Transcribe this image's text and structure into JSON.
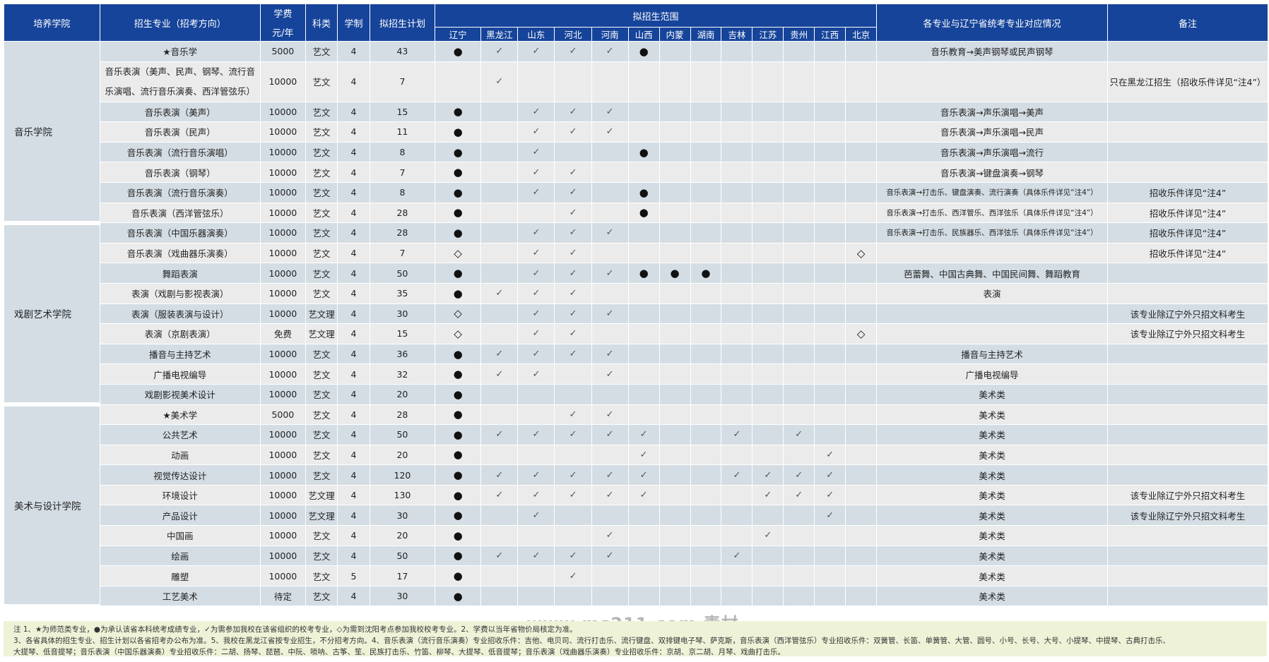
{
  "header": {
    "college": "培养学院",
    "major": "招生专业（招考方向）",
    "fee_line1": "学费",
    "fee_line2": "元/年",
    "category": "科类",
    "duration": "学制",
    "plan": "拟招生计划",
    "range": "拟招生范围",
    "provinces": [
      "辽宁",
      "黑龙江",
      "山东",
      "河北",
      "河南",
      "山西",
      "内蒙",
      "湖南",
      "吉林",
      "江苏",
      "贵州",
      "江西",
      "北京"
    ],
    "mapping": "各专业与辽宁省统考专业对应情况",
    "remark": "备注"
  },
  "rows": [
    {
      "college": "音乐学院",
      "college_span": 8,
      "major": "★音乐学",
      "fee": "5000",
      "category": "艺文",
      "duration": "4",
      "plan": "43",
      "marks": [
        "●",
        "✓",
        "✓",
        "✓",
        "✓",
        "●",
        "",
        "",
        "",
        "",
        "",
        "",
        ""
      ],
      "mapping": "音乐教育→美声钢琴或民声钢琴",
      "remark": ""
    },
    {
      "major": "音乐表演（美声、民声、钢琴、流行音乐演唱、流行音乐演奏、西洋管弦乐）",
      "tall": true,
      "fee": "10000",
      "category": "艺文",
      "duration": "4",
      "plan": "7",
      "marks": [
        "",
        "✓",
        "",
        "",
        "",
        "",
        "",
        "",
        "",
        "",
        "",
        "",
        ""
      ],
      "mapping": "",
      "remark": "只在黑龙江招生（招收乐件详见“注4”）"
    },
    {
      "major": "音乐表演（美声）",
      "fee": "10000",
      "category": "艺文",
      "duration": "4",
      "plan": "15",
      "marks": [
        "●",
        "",
        "✓",
        "✓",
        "✓",
        "",
        "",
        "",
        "",
        "",
        "",
        "",
        ""
      ],
      "mapping": "音乐表演→声乐演唱→美声",
      "remark": ""
    },
    {
      "major": "音乐表演（民声）",
      "fee": "10000",
      "category": "艺文",
      "duration": "4",
      "plan": "11",
      "marks": [
        "●",
        "",
        "✓",
        "✓",
        "✓",
        "",
        "",
        "",
        "",
        "",
        "",
        "",
        ""
      ],
      "mapping": "音乐表演→声乐演唱→民声",
      "remark": ""
    },
    {
      "major": "音乐表演（流行音乐演唱）",
      "fee": "10000",
      "category": "艺文",
      "duration": "4",
      "plan": "8",
      "marks": [
        "●",
        "",
        "✓",
        "",
        "",
        "●",
        "",
        "",
        "",
        "",
        "",
        "",
        ""
      ],
      "mapping": "音乐表演→声乐演唱→流行",
      "remark": ""
    },
    {
      "major": "音乐表演（钢琴）",
      "fee": "10000",
      "category": "艺文",
      "duration": "4",
      "plan": "7",
      "marks": [
        "●",
        "",
        "✓",
        "✓",
        "",
        "",
        "",
        "",
        "",
        "",
        "",
        "",
        ""
      ],
      "mapping": "音乐表演→键盘演奏→钢琴",
      "remark": ""
    },
    {
      "major": "音乐表演（流行音乐演奏）",
      "fee": "10000",
      "category": "艺文",
      "duration": "4",
      "plan": "8",
      "marks": [
        "●",
        "",
        "✓",
        "✓",
        "",
        "●",
        "",
        "",
        "",
        "",
        "",
        "",
        ""
      ],
      "mapping": "音乐表演→打击乐、键盘演奏、流行演奏（具体乐件详见“注4”）",
      "mapping_small": true,
      "remark": "招收乐件详见“注4”"
    },
    {
      "major": "音乐表演（西洋管弦乐）",
      "fee": "10000",
      "category": "艺文",
      "duration": "4",
      "plan": "28",
      "marks": [
        "●",
        "",
        "",
        "✓",
        "",
        "●",
        "",
        "",
        "",
        "",
        "",
        "",
        ""
      ],
      "mapping": "音乐表演→打击乐、西洋管乐、西洋弦乐（具体乐件详见“注4”）",
      "mapping_small": true,
      "remark": "招收乐件详见“注4”"
    },
    {
      "college": "戏剧艺术学院",
      "college_span": 9,
      "major": "音乐表演（中国乐器演奏）",
      "fee": "10000",
      "category": "艺文",
      "duration": "4",
      "plan": "28",
      "marks": [
        "●",
        "",
        "✓",
        "✓",
        "✓",
        "",
        "",
        "",
        "",
        "",
        "",
        "",
        ""
      ],
      "mapping": "音乐表演→打击乐、民族器乐、西洋弦乐（具体乐件详见“注4”）",
      "mapping_small": true,
      "remark": "招收乐件详见“注4”"
    },
    {
      "major": "音乐表演（戏曲器乐演奏）",
      "fee": "10000",
      "category": "艺文",
      "duration": "4",
      "plan": "7",
      "marks": [
        "◇",
        "",
        "✓",
        "✓",
        "",
        "",
        "",
        "",
        "",
        "",
        "",
        "",
        "◇"
      ],
      "mapping": "",
      "remark": "招收乐件详见“注4”"
    },
    {
      "major": "舞蹈表演",
      "fee": "10000",
      "category": "艺文",
      "duration": "4",
      "plan": "50",
      "marks": [
        "●",
        "",
        "✓",
        "✓",
        "✓",
        "●",
        "●",
        "●",
        "",
        "",
        "",
        "",
        ""
      ],
      "mapping": "芭蕾舞、中国古典舞、中国民间舞、舞蹈教育",
      "remark": ""
    },
    {
      "major": "表演（戏剧与影视表演）",
      "fee": "10000",
      "category": "艺文",
      "duration": "4",
      "plan": "35",
      "marks": [
        "●",
        "✓",
        "✓",
        "✓",
        "",
        "",
        "",
        "",
        "",
        "",
        "",
        "",
        ""
      ],
      "mapping": "表演",
      "remark": ""
    },
    {
      "major": "表演（服装表演与设计）",
      "fee": "10000",
      "category": "艺文理",
      "duration": "4",
      "plan": "30",
      "marks": [
        "◇",
        "",
        "✓",
        "✓",
        "✓",
        "",
        "",
        "",
        "",
        "",
        "",
        "",
        ""
      ],
      "mapping": "",
      "remark": "该专业除辽宁外只招文科考生"
    },
    {
      "major": "表演（京剧表演）",
      "fee": "免费",
      "category": "艺文理",
      "duration": "4",
      "plan": "15",
      "marks": [
        "◇",
        "",
        "✓",
        "✓",
        "",
        "",
        "",
        "",
        "",
        "",
        "",
        "",
        "◇"
      ],
      "mapping": "",
      "remark": "该专业除辽宁外只招文科考生"
    },
    {
      "major": "播音与主持艺术",
      "fee": "10000",
      "category": "艺文",
      "duration": "4",
      "plan": "36",
      "marks": [
        "●",
        "✓",
        "✓",
        "✓",
        "✓",
        "",
        "",
        "",
        "",
        "",
        "",
        "",
        ""
      ],
      "mapping": "播音与主持艺术",
      "remark": ""
    },
    {
      "major": "广播电视编导",
      "fee": "10000",
      "category": "艺文",
      "duration": "4",
      "plan": "32",
      "marks": [
        "●",
        "✓",
        "✓",
        "",
        "✓",
        "",
        "",
        "",
        "",
        "",
        "",
        "",
        ""
      ],
      "mapping": "广播电视编导",
      "remark": ""
    },
    {
      "major": "戏剧影视美术设计",
      "fee": "10000",
      "category": "艺文",
      "duration": "4",
      "plan": "20",
      "marks": [
        "●",
        "",
        "",
        "",
        "",
        "",
        "",
        "",
        "",
        "",
        "",
        "",
        ""
      ],
      "mapping": "美术类",
      "remark": ""
    },
    {
      "college": "美术与设计学院",
      "college_span": 10,
      "major": "★美术学",
      "fee": "5000",
      "category": "艺文",
      "duration": "4",
      "plan": "28",
      "marks": [
        "●",
        "",
        "",
        "✓",
        "✓",
        "",
        "",
        "",
        "",
        "",
        "",
        "",
        ""
      ],
      "mapping": "美术类",
      "remark": ""
    },
    {
      "major": "公共艺术",
      "fee": "10000",
      "category": "艺文",
      "duration": "4",
      "plan": "50",
      "marks": [
        "●",
        "✓",
        "✓",
        "✓",
        "✓",
        "✓",
        "",
        "",
        "✓",
        "",
        "✓",
        "",
        ""
      ],
      "mapping": "美术类",
      "remark": ""
    },
    {
      "major": "动画",
      "fee": "10000",
      "category": "艺文",
      "duration": "4",
      "plan": "20",
      "marks": [
        "●",
        "",
        "",
        "",
        "",
        "✓",
        "",
        "",
        "",
        "",
        "",
        "✓",
        ""
      ],
      "mapping": "美术类",
      "remark": ""
    },
    {
      "major": "视觉传达设计",
      "fee": "10000",
      "category": "艺文",
      "duration": "4",
      "plan": "120",
      "marks": [
        "●",
        "✓",
        "✓",
        "✓",
        "✓",
        "✓",
        "",
        "",
        "✓",
        "✓",
        "✓",
        "✓",
        ""
      ],
      "mapping": "美术类",
      "remark": ""
    },
    {
      "major": "环境设计",
      "fee": "10000",
      "category": "艺文理",
      "duration": "4",
      "plan": "130",
      "marks": [
        "●",
        "✓",
        "✓",
        "✓",
        "✓",
        "✓",
        "",
        "",
        "",
        "✓",
        "✓",
        "✓",
        ""
      ],
      "mapping": "美术类",
      "remark": "该专业除辽宁外只招文科考生"
    },
    {
      "major": "产品设计",
      "fee": "10000",
      "category": "艺文理",
      "duration": "4",
      "plan": "30",
      "marks": [
        "●",
        "",
        "✓",
        "",
        "",
        "",
        "",
        "",
        "",
        "",
        "",
        "✓",
        ""
      ],
      "mapping": "美术类",
      "remark": "该专业除辽宁外只招文科考生"
    },
    {
      "major": "中国画",
      "fee": "10000",
      "category": "艺文",
      "duration": "4",
      "plan": "20",
      "marks": [
        "●",
        "",
        "",
        "",
        "✓",
        "",
        "",
        "",
        "",
        "✓",
        "",
        "",
        ""
      ],
      "mapping": "美术类",
      "remark": ""
    },
    {
      "major": "绘画",
      "fee": "10000",
      "category": "艺文",
      "duration": "4",
      "plan": "50",
      "marks": [
        "●",
        "✓",
        "✓",
        "✓",
        "✓",
        "",
        "",
        "",
        "✓",
        "",
        "",
        "",
        ""
      ],
      "mapping": "美术类",
      "remark": ""
    },
    {
      "major": "雕塑",
      "fee": "10000",
      "category": "艺文",
      "duration": "5",
      "plan": "17",
      "marks": [
        "●",
        "",
        "",
        "✓",
        "",
        "",
        "",
        "",
        "",
        "",
        "",
        "",
        ""
      ],
      "mapping": "美术类",
      "remark": ""
    },
    {
      "major": "工艺美术",
      "fee": "待定",
      "category": "艺文",
      "duration": "4",
      "plan": "30",
      "marks": [
        "●",
        "",
        "",
        "",
        "",
        "",
        "",
        "",
        "",
        "",
        "",
        "",
        ""
      ],
      "mapping": "美术类",
      "remark": ""
    }
  ],
  "notes": {
    "line1": "注  1、★为师范类专业，●为承认该省本科统考成绩专业，✓为需参加我校在该省组织的校考专业，◇为需到沈阳考点参加我校校考专业。2、学费以当年省物价局核定为准。",
    "line2": "3、各省具体的招生专业、招生计划以各省招考办公布为准。5、我校在黑龙江省按专业招生，不分招考方向。4、音乐表演（流行音乐演奏）专业招收乐件：吉他、电贝司、流行打击乐、流行键盘、双排键电子琴、萨克斯，音乐表演（西洋管弦乐）专业招收乐件：双簧管、长笛、单簧管、大管、圆号、小号、长号、大号、小提琴、中提琴、古典打击乐、",
    "line3": "大提琴、低音提琴；音乐表演（中国乐器演奏）专业招收乐件：二胡、扬琴、琵琶、中阮、唢呐、古筝、笙、民族打击乐、竹笛、柳琴、大提琴、低音提琴；音乐表演（戏曲器乐演奏）专业招收乐件：京胡、京二胡、月琴、戏曲打击乐。"
  },
  "watermark": "www.ms211.com 素材"
}
